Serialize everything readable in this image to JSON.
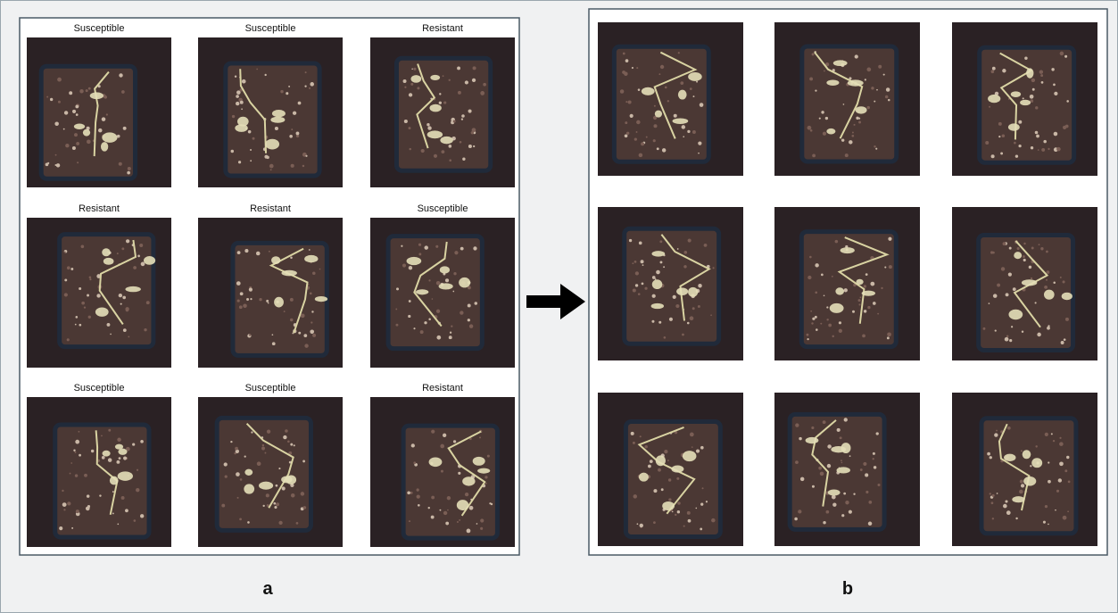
{
  "panel_a": {
    "labels": [
      "Susceptible",
      "Susceptible",
      "Resistant",
      "Resistant",
      "Resistant",
      "Susceptible",
      "Susceptible",
      "Susceptible",
      "Resistant"
    ],
    "caption": "a"
  },
  "panel_b": {
    "caption": "b"
  }
}
